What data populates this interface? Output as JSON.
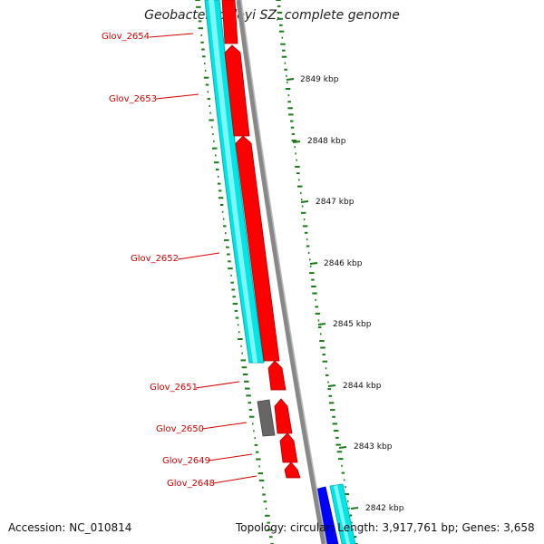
{
  "title": "Geobacter lovleyi SZ, complete genome",
  "footer": {
    "accession": "Accession: NC_010814",
    "summary": "Topology: circular; Length: 3,917,761 bp; Genes: 3,658"
  },
  "colors": {
    "cds_forward": "#ff0000",
    "cds_reverse": "#00ffff",
    "rna": "#0000ff",
    "other": "#666666",
    "backbone": "#888888",
    "gc_ticks": "#1a7a1a",
    "label": "#d40000"
  },
  "genes": [
    {
      "name": "Glov_2654"
    },
    {
      "name": "Glov_2653"
    },
    {
      "name": "Glov_2652"
    },
    {
      "name": "Glov_2651"
    },
    {
      "name": "Glov_2650"
    },
    {
      "name": "Glov_2649"
    },
    {
      "name": "Glov_2648"
    }
  ],
  "kbp_ticks": [
    "2849 kbp",
    "2848 kbp",
    "2847 kbp",
    "2846 kbp",
    "2845 kbp",
    "2844 kbp",
    "2843 kbp",
    "2842 kbp"
  ]
}
